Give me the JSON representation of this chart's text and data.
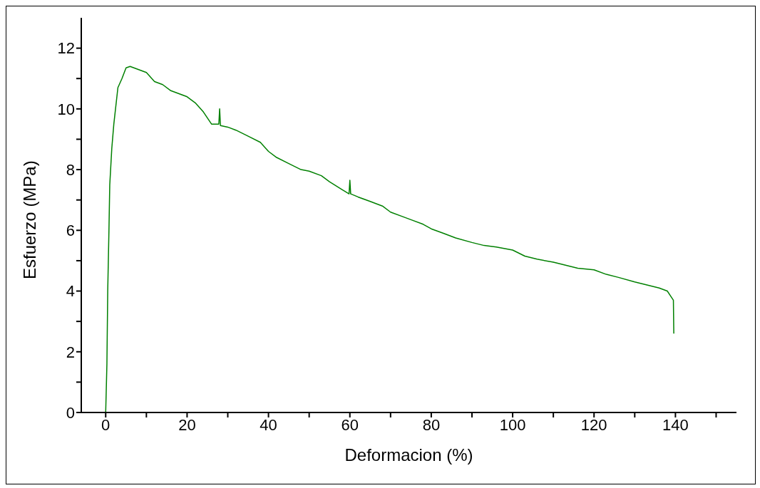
{
  "chart_data": {
    "type": "line",
    "xlabel": "Deformacion (%)",
    "ylabel": "Esfuerzo (MPa)",
    "xlim": [
      -6,
      155
    ],
    "ylim": [
      0,
      13
    ],
    "xticks": [
      0,
      {
        "value": 10,
        "label": null
      },
      20,
      {
        "value": 30,
        "label": null
      },
      40,
      {
        "value": 50,
        "label": null
      },
      60,
      {
        "value": 70,
        "label": null
      },
      80,
      {
        "value": 90,
        "label": null
      },
      100,
      {
        "value": 110,
        "label": null
      },
      120,
      {
        "value": 130,
        "label": null
      },
      140,
      {
        "value": 150,
        "label": null
      }
    ],
    "yticks": [
      0,
      {
        "value": 1,
        "label": null
      },
      2,
      {
        "value": 3,
        "label": null
      },
      4,
      {
        "value": 5,
        "label": null
      },
      6,
      {
        "value": 7,
        "label": null
      },
      8,
      {
        "value": 9,
        "label": null
      },
      10,
      {
        "value": 11,
        "label": null
      },
      12
    ],
    "grid": false,
    "legend": false,
    "marker": "none",
    "line_style": "solid",
    "series": [
      {
        "color": "#008000",
        "x": [
          0,
          0.3,
          0.5,
          0.8,
          1,
          1.5,
          2,
          3,
          4,
          5,
          6,
          8,
          10,
          12,
          14,
          16,
          18,
          20,
          22,
          24,
          25,
          26,
          27.8,
          28,
          28.2,
          30,
          32,
          35,
          38,
          40,
          42,
          45,
          48,
          50,
          53,
          55,
          58,
          59.8,
          60,
          60.2,
          62,
          65,
          68,
          70,
          73,
          75,
          78,
          80,
          83,
          86,
          90,
          93,
          96,
          100,
          103,
          106,
          110,
          113,
          116,
          120,
          123,
          126,
          130,
          133,
          136,
          138,
          139,
          139.5,
          139.6
        ],
        "values": [
          0,
          1.6,
          4,
          6,
          7.5,
          8.7,
          9.5,
          10.7,
          11.0,
          11.35,
          11.4,
          11.3,
          11.2,
          10.9,
          10.8,
          10.6,
          10.5,
          10.4,
          10.2,
          9.9,
          9.7,
          9.5,
          9.5,
          10.0,
          9.45,
          9.4,
          9.3,
          9.1,
          8.9,
          8.6,
          8.4,
          8.2,
          8.0,
          7.95,
          7.8,
          7.6,
          7.35,
          7.2,
          7.65,
          7.2,
          7.1,
          6.95,
          6.8,
          6.6,
          6.45,
          6.35,
          6.2,
          6.05,
          5.9,
          5.75,
          5.6,
          5.5,
          5.45,
          5.35,
          5.15,
          5.05,
          4.95,
          4.85,
          4.75,
          4.7,
          4.55,
          4.45,
          4.3,
          4.2,
          4.1,
          4.0,
          3.8,
          3.7,
          2.6
        ]
      }
    ]
  }
}
